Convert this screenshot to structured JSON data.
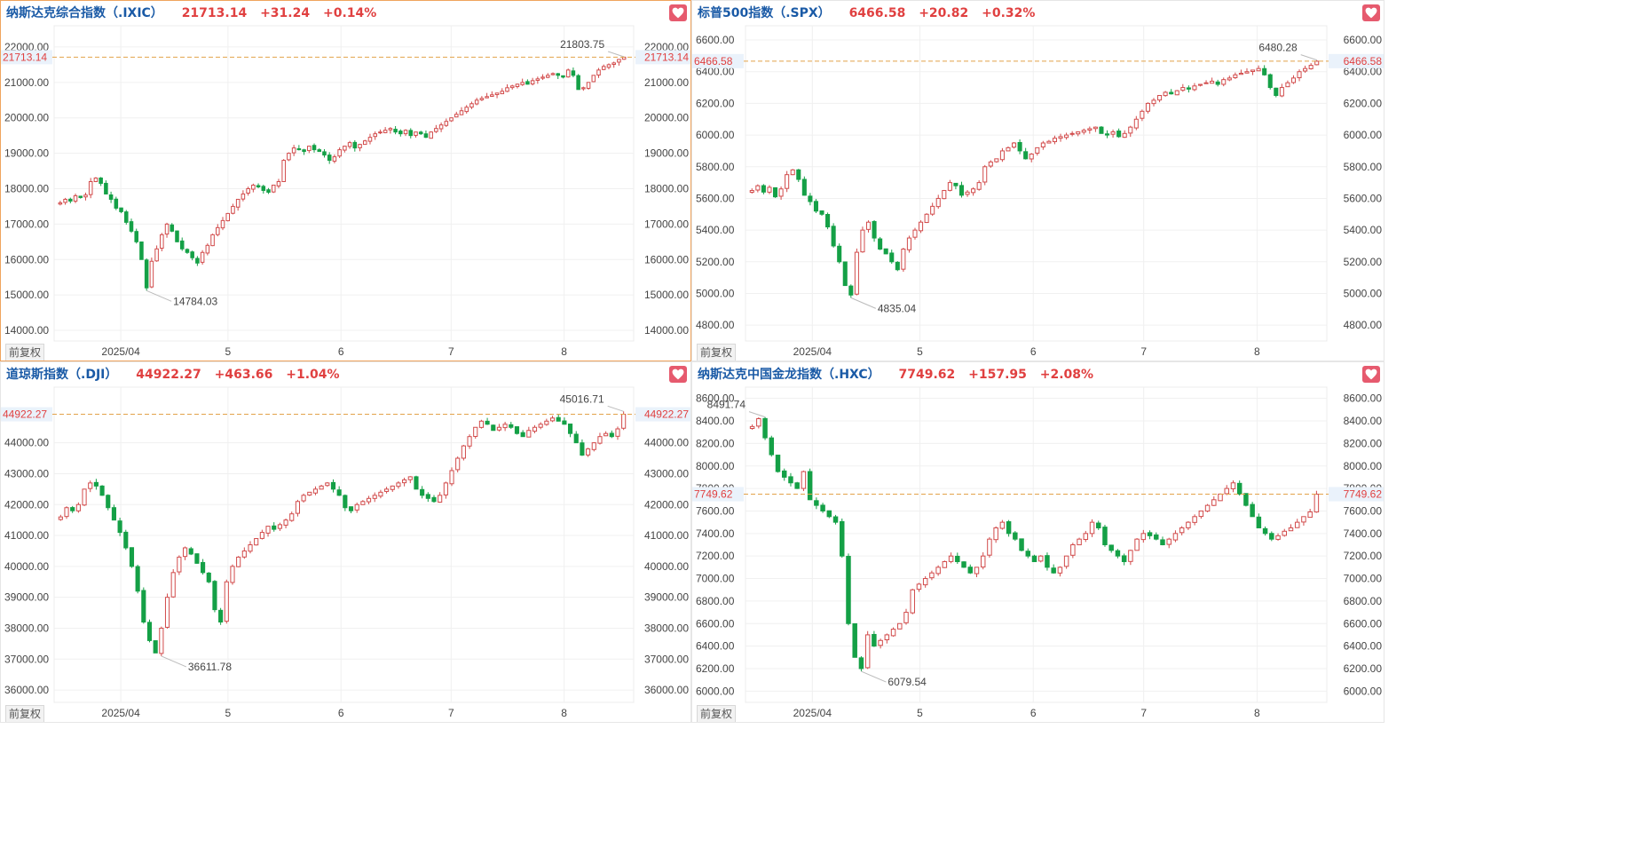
{
  "restore_label": "前复权",
  "colors": {
    "up": "#d24b4b",
    "down": "#14a046",
    "ref": "#e2a24a",
    "price_tag": "#e04040"
  },
  "panels": [
    {
      "title": "纳斯达克综合指数（.IXIC）",
      "price": "21713.14",
      "change": "+31.24",
      "pct": "+0.14%",
      "active": true,
      "chart_data": {
        "type": "candlestick",
        "x_ticks": [
          "2025/04",
          "5",
          "6",
          "7",
          "8"
        ],
        "y_ticks": [
          "14000.00",
          "15000.00",
          "16000.00",
          "17000.00",
          "18000.00",
          "19000.00",
          "20000.00",
          "21000.00",
          "22000.00"
        ],
        "ylim": [
          13700,
          22600
        ],
        "current": "21713.14",
        "max_label": "21803.75",
        "min_label": "14784.03",
        "closes": [
          17600,
          17700,
          17650,
          17800,
          17750,
          17820,
          18200,
          18300,
          18150,
          17850,
          17700,
          17450,
          17350,
          17050,
          16800,
          16500,
          16000,
          15200,
          15950,
          16300,
          16700,
          17000,
          16800,
          16500,
          16300,
          16200,
          16050,
          15900,
          16200,
          16400,
          16700,
          16900,
          17100,
          17300,
          17500,
          17700,
          17850,
          18000,
          18100,
          18050,
          17950,
          17900,
          18100,
          18200,
          18800,
          19000,
          19150,
          19100,
          19050,
          19200,
          19100,
          19050,
          18950,
          18800,
          18900,
          19100,
          19200,
          19300,
          19150,
          19250,
          19350,
          19450,
          19550,
          19600,
          19650,
          19700,
          19600,
          19550,
          19650,
          19500,
          19600,
          19550,
          19450,
          19600,
          19700,
          19800,
          19900,
          20000,
          20100,
          20200,
          20300,
          20400,
          20500,
          20550,
          20600,
          20650,
          20700,
          20750,
          20850,
          20900,
          20950,
          21000,
          20950,
          21050,
          21100,
          21150,
          21200,
          21250,
          21200,
          21150,
          21350,
          21200,
          20800,
          20850,
          21000,
          21200,
          21350,
          21450,
          21500,
          21550,
          21650,
          21713
        ]
      }
    },
    {
      "title": "标普500指数（.SPX）",
      "price": "6466.58",
      "change": "+20.82",
      "pct": "+0.32%",
      "active": false,
      "chart_data": {
        "type": "candlestick",
        "x_ticks": [
          "2025/04",
          "5",
          "6",
          "7",
          "8"
        ],
        "y_ticks": [
          "4800.00",
          "5000.00",
          "5200.00",
          "5400.00",
          "5600.00",
          "5800.00",
          "6000.00",
          "6200.00",
          "6400.00",
          "6600.00"
        ],
        "ylim": [
          4700,
          6690
        ],
        "current": "6466.58",
        "max_label": "6480.28",
        "min_label": "4835.04",
        "closes": [
          5650,
          5680,
          5640,
          5670,
          5610,
          5660,
          5750,
          5780,
          5720,
          5620,
          5580,
          5520,
          5500,
          5420,
          5300,
          5200,
          5050,
          4990,
          5260,
          5400,
          5450,
          5350,
          5280,
          5250,
          5200,
          5150,
          5280,
          5350,
          5400,
          5450,
          5500,
          5550,
          5600,
          5650,
          5700,
          5680,
          5620,
          5640,
          5660,
          5700,
          5800,
          5830,
          5850,
          5900,
          5920,
          5950,
          5900,
          5850,
          5880,
          5920,
          5950,
          5960,
          5980,
          5990,
          6000,
          6010,
          6020,
          6030,
          6040,
          6050,
          6010,
          6000,
          6020,
          5990,
          6010,
          6050,
          6100,
          6150,
          6200,
          6220,
          6250,
          6270,
          6260,
          6280,
          6300,
          6290,
          6310,
          6320,
          6330,
          6340,
          6320,
          6350,
          6360,
          6380,
          6390,
          6400,
          6410,
          6420,
          6380,
          6300,
          6250,
          6300,
          6330,
          6360,
          6400,
          6420,
          6440,
          6466
        ]
      }
    },
    {
      "title": "道琼斯指数（.DJI）",
      "price": "44922.27",
      "change": "+463.66",
      "pct": "+1.04%",
      "active": false,
      "chart_data": {
        "type": "candlestick",
        "x_ticks": [
          "2025/04",
          "5",
          "6",
          "7",
          "8"
        ],
        "y_ticks": [
          "36000.00",
          "37000.00",
          "38000.00",
          "39000.00",
          "40000.00",
          "41000.00",
          "42000.00",
          "43000.00",
          "44000.00"
        ],
        "ylim": [
          35600,
          45800
        ],
        "current": "44922.27",
        "max_label": "45016.71",
        "min_label": "36611.78",
        "closes": [
          41600,
          41900,
          41800,
          42000,
          42500,
          42700,
          42600,
          42300,
          41900,
          41500,
          41100,
          40600,
          40000,
          39200,
          38200,
          37600,
          37200,
          38000,
          39000,
          39800,
          40300,
          40600,
          40400,
          40100,
          39800,
          39500,
          38600,
          38200,
          39500,
          40000,
          40300,
          40500,
          40700,
          40900,
          41100,
          41300,
          41200,
          41350,
          41500,
          41700,
          42100,
          42300,
          42400,
          42500,
          42600,
          42700,
          42500,
          42300,
          41900,
          41800,
          42000,
          42100,
          42200,
          42300,
          42400,
          42500,
          42600,
          42700,
          42800,
          42900,
          42500,
          42300,
          42200,
          42100,
          42300,
          42700,
          43100,
          43500,
          43900,
          44200,
          44500,
          44700,
          44600,
          44400,
          44500,
          44600,
          44500,
          44300,
          44200,
          44400,
          44500,
          44600,
          44700,
          44800,
          44700,
          44600,
          44300,
          44000,
          43600,
          43800,
          44000,
          44200,
          44300,
          44200,
          44450,
          44922
        ]
      }
    },
    {
      "title": "纳斯达克中国金龙指数（.HXC）",
      "price": "7749.62",
      "change": "+157.95",
      "pct": "+2.08%",
      "active": false,
      "chart_data": {
        "type": "candlestick",
        "x_ticks": [
          "2025/04",
          "5",
          "6",
          "7",
          "8"
        ],
        "y_ticks": [
          "6000.00",
          "6200.00",
          "6400.00",
          "6600.00",
          "6800.00",
          "7000.00",
          "7200.00",
          "7400.00",
          "7600.00",
          "7800.00",
          "8000.00",
          "8200.00",
          "8400.00",
          "8600.00"
        ],
        "ylim": [
          5900,
          8700
        ],
        "current": "7749.62",
        "max_label": "8491.74",
        "min_label": "6079.54",
        "closes": [
          8350,
          8420,
          8250,
          8100,
          7950,
          7900,
          7850,
          7800,
          7950,
          7700,
          7650,
          7600,
          7550,
          7500,
          7200,
          6600,
          6300,
          6200,
          6500,
          6400,
          6450,
          6500,
          6550,
          6600,
          6700,
          6900,
          6950,
          7000,
          7050,
          7100,
          7150,
          7200,
          7150,
          7100,
          7050,
          7100,
          7200,
          7350,
          7450,
          7500,
          7400,
          7350,
          7250,
          7200,
          7150,
          7200,
          7100,
          7050,
          7100,
          7200,
          7300,
          7350,
          7400,
          7500,
          7450,
          7300,
          7250,
          7200,
          7150,
          7250,
          7350,
          7400,
          7380,
          7350,
          7300,
          7350,
          7400,
          7450,
          7500,
          7550,
          7600,
          7650,
          7700,
          7750,
          7800,
          7850,
          7750,
          7650,
          7550,
          7450,
          7400,
          7350,
          7380,
          7420,
          7450,
          7500,
          7550,
          7592,
          7749
        ]
      }
    }
  ]
}
